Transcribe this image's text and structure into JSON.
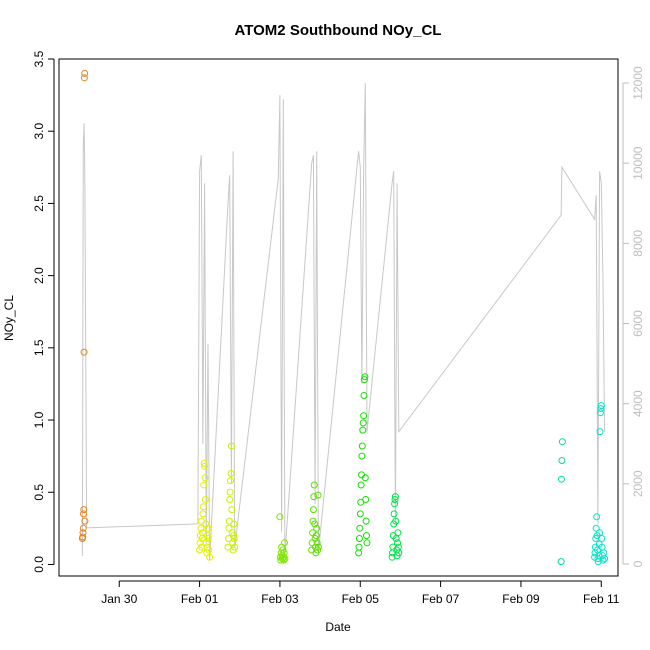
{
  "chart_data": {
    "type": "scatter",
    "title": "ATOM2 Southbound NOy_CL",
    "xlabel": "Date",
    "ylabel": "NOy_CL",
    "x_axis": {
      "type": "date",
      "range": [
        "2017-01-28T12:00",
        "2017-02-11T10:00"
      ],
      "ticks": [
        {
          "value": "2017-01-30",
          "label": "Jan 30"
        },
        {
          "value": "2017-02-01",
          "label": "Feb 01"
        },
        {
          "value": "2017-02-03",
          "label": "Feb 03"
        },
        {
          "value": "2017-02-05",
          "label": "Feb 05"
        },
        {
          "value": "2017-02-07",
          "label": "Feb 07"
        },
        {
          "value": "2017-02-09",
          "label": "Feb 09"
        },
        {
          "value": "2017-02-11",
          "label": "Feb 11"
        }
      ]
    },
    "y_axis": {
      "range": [
        -0.08,
        3.5
      ],
      "ticks": [
        0.0,
        0.5,
        1.0,
        1.5,
        2.0,
        2.5,
        3.0,
        3.5
      ],
      "tick_labels": [
        "0.0",
        "0.5",
        "1.0",
        "1.5",
        "2.0",
        "2.5",
        "3.0",
        "3.5"
      ]
    },
    "y2_axis": {
      "range": [
        -300,
        12600
      ],
      "ticks": [
        0,
        2000,
        4000,
        6000,
        8000,
        10000,
        12000
      ],
      "tick_labels": [
        "0",
        "2000",
        "4000",
        "6000",
        "8000",
        "10000",
        "12000"
      ],
      "color": "#bdbdbd"
    },
    "grid": false,
    "line_series": {
      "axis": "y2",
      "color": "#c8c8c8",
      "points": [
        [
          "2017-01-29T02:00",
          200
        ],
        [
          "2017-01-29T02:30",
          10500
        ],
        [
          "2017-01-29T03:00",
          11000
        ],
        [
          "2017-01-29T03:30",
          9500
        ],
        [
          "2017-01-29T04:00",
          5000
        ],
        [
          "2017-01-29T04:30",
          900
        ],
        [
          "2017-01-31T23:00",
          1000
        ],
        [
          "2017-02-01T00:00",
          9800
        ],
        [
          "2017-02-01T01:00",
          10200
        ],
        [
          "2017-02-01T02:00",
          3000
        ],
        [
          "2017-02-01T03:00",
          9500
        ],
        [
          "2017-02-01T04:00",
          500
        ],
        [
          "2017-02-01T05:00",
          5500
        ],
        [
          "2017-02-01T06:00",
          100
        ],
        [
          "2017-02-01T17:00",
          9000
        ],
        [
          "2017-02-01T18:00",
          9700
        ],
        [
          "2017-02-01T19:00",
          2000
        ],
        [
          "2017-02-01T20:00",
          10300
        ],
        [
          "2017-02-01T21:00",
          400
        ],
        [
          "2017-02-02T23:00",
          9600
        ],
        [
          "2017-02-03T00:00",
          11700
        ],
        [
          "2017-02-03T01:00",
          800
        ],
        [
          "2017-02-03T02:00",
          11600
        ],
        [
          "2017-02-03T03:00",
          200
        ],
        [
          "2017-02-03T19:00",
          10000
        ],
        [
          "2017-02-03T20:00",
          10200
        ],
        [
          "2017-02-03T21:00",
          1500
        ],
        [
          "2017-02-03T22:00",
          10300
        ],
        [
          "2017-02-03T23:00",
          300
        ],
        [
          "2017-02-04T23:00",
          10300
        ],
        [
          "2017-02-05T00:00",
          9900
        ],
        [
          "2017-02-05T01:00",
          4500
        ],
        [
          "2017-02-05T02:00",
          9800
        ],
        [
          "2017-02-05T03:00",
          12000
        ],
        [
          "2017-02-05T04:00",
          3300
        ],
        [
          "2017-02-05T19:00",
          9500
        ],
        [
          "2017-02-05T20:00",
          9800
        ],
        [
          "2017-02-05T21:00",
          1000
        ],
        [
          "2017-02-05T22:00",
          9500
        ],
        [
          "2017-02-05T23:00",
          3300
        ],
        [
          "2017-02-10T00:00",
          8700
        ],
        [
          "2017-02-10T00:30",
          9900
        ],
        [
          "2017-02-10T20:00",
          8600
        ],
        [
          "2017-02-10T21:00",
          9200
        ],
        [
          "2017-02-10T22:00",
          1000
        ],
        [
          "2017-02-10T23:00",
          9800
        ],
        [
          "2017-02-11T00:00",
          9500
        ],
        [
          "2017-02-11T01:00",
          7200
        ],
        [
          "2017-02-11T02:00",
          3300
        ]
      ]
    },
    "scatter_series": [
      {
        "color": "#e8831a",
        "x": [
          "2017-01-29T02:00",
          "2017-01-29T02:10",
          "2017-01-29T02:20",
          "2017-01-29T02:30",
          "2017-01-29T02:40",
          "2017-01-29T02:50",
          "2017-01-29T03:00",
          "2017-01-29T03:10",
          "2017-01-29T03:20",
          "2017-01-29T03:30"
        ],
        "y": [
          0.18,
          0.19,
          0.22,
          0.25,
          0.35,
          0.38,
          1.47,
          3.37,
          3.4,
          0.3
        ]
      },
      {
        "color": "#dff200",
        "x": [
          "2017-02-01T00:00",
          "2017-02-01T00:15",
          "2017-02-01T00:30",
          "2017-02-01T00:45",
          "2017-02-01T01:00",
          "2017-02-01T01:15",
          "2017-02-01T01:30",
          "2017-02-01T01:45",
          "2017-02-01T02:00",
          "2017-02-01T02:15",
          "2017-02-01T02:30",
          "2017-02-01T02:45",
          "2017-02-01T03:00",
          "2017-02-01T03:15",
          "2017-02-01T03:30",
          "2017-02-01T03:45",
          "2017-02-01T04:00",
          "2017-02-01T04:15",
          "2017-02-01T04:30",
          "2017-02-01T04:45",
          "2017-02-01T05:00",
          "2017-02-01T05:15",
          "2017-02-01T05:30",
          "2017-02-01T06:00"
        ],
        "y": [
          0.1,
          0.15,
          0.2,
          0.25,
          0.3,
          0.12,
          0.18,
          0.22,
          0.35,
          0.4,
          0.55,
          0.7,
          0.68,
          0.6,
          0.45,
          0.28,
          0.15,
          0.08,
          0.12,
          0.2,
          0.25,
          0.18,
          0.1,
          0.05
        ]
      },
      {
        "color": "#ccf000",
        "x": [
          "2017-02-01T17:00",
          "2017-02-01T17:15",
          "2017-02-01T17:30",
          "2017-02-01T17:45",
          "2017-02-01T18:00",
          "2017-02-01T18:15",
          "2017-02-01T18:30",
          "2017-02-01T18:45",
          "2017-02-01T19:00",
          "2017-02-01T19:15",
          "2017-02-01T19:30",
          "2017-02-01T19:45",
          "2017-02-01T20:00",
          "2017-02-01T20:15",
          "2017-02-01T20:30",
          "2017-02-01T20:45",
          "2017-02-01T21:00"
        ],
        "y": [
          0.12,
          0.18,
          0.25,
          0.3,
          0.45,
          0.5,
          0.58,
          0.63,
          0.82,
          0.38,
          0.22,
          0.15,
          0.1,
          0.2,
          0.28,
          0.18,
          0.12
        ]
      },
      {
        "color": "#7de600",
        "x": [
          "2017-02-03T00:00",
          "2017-02-03T00:15",
          "2017-02-03T00:30",
          "2017-02-03T00:45",
          "2017-02-03T01:00",
          "2017-02-03T01:15",
          "2017-02-03T01:30",
          "2017-02-03T01:45",
          "2017-02-03T02:00",
          "2017-02-03T02:15",
          "2017-02-03T02:30",
          "2017-02-03T02:45",
          "2017-02-03T03:00"
        ],
        "y": [
          0.33,
          0.05,
          0.03,
          0.08,
          0.12,
          0.06,
          0.04,
          0.1,
          0.05,
          0.03,
          0.08,
          0.15,
          0.04
        ]
      },
      {
        "color": "#5ee000",
        "x": [
          "2017-02-03T19:00",
          "2017-02-03T19:15",
          "2017-02-03T19:30",
          "2017-02-03T19:45",
          "2017-02-03T20:00",
          "2017-02-03T20:15",
          "2017-02-03T20:30",
          "2017-02-03T20:45",
          "2017-02-03T21:00",
          "2017-02-03T21:15",
          "2017-02-03T21:30",
          "2017-02-03T21:45",
          "2017-02-03T22:00",
          "2017-02-03T22:15",
          "2017-02-03T22:30",
          "2017-02-03T22:45",
          "2017-02-03T23:00"
        ],
        "y": [
          0.1,
          0.15,
          0.22,
          0.3,
          0.38,
          0.47,
          0.55,
          0.28,
          0.18,
          0.12,
          0.08,
          0.2,
          0.25,
          0.15,
          0.1,
          0.48,
          0.12
        ]
      },
      {
        "color": "#12e000",
        "x": [
          "2017-02-04T23:00",
          "2017-02-04T23:15",
          "2017-02-04T23:30",
          "2017-02-04T23:45",
          "2017-02-05T00:00",
          "2017-02-05T00:15",
          "2017-02-05T00:30",
          "2017-02-05T00:45",
          "2017-02-05T01:00",
          "2017-02-05T01:15",
          "2017-02-05T01:30",
          "2017-02-05T01:45",
          "2017-02-05T02:00",
          "2017-02-05T02:15",
          "2017-02-05T02:30",
          "2017-02-05T02:45",
          "2017-02-05T03:00",
          "2017-02-05T03:15",
          "2017-02-05T03:30",
          "2017-02-05T03:45",
          "2017-02-05T04:00"
        ],
        "y": [
          0.08,
          0.12,
          0.18,
          0.25,
          0.35,
          0.43,
          0.55,
          0.62,
          0.75,
          0.82,
          0.93,
          0.98,
          1.03,
          1.17,
          1.28,
          1.3,
          0.6,
          0.45,
          0.3,
          0.2,
          0.15
        ]
      },
      {
        "color": "#00e24a",
        "x": [
          "2017-02-05T19:00",
          "2017-02-05T19:15",
          "2017-02-05T19:30",
          "2017-02-05T19:45",
          "2017-02-05T20:00",
          "2017-02-05T20:15",
          "2017-02-05T20:30",
          "2017-02-05T20:45",
          "2017-02-05T21:00",
          "2017-02-05T21:15",
          "2017-02-05T21:30",
          "2017-02-05T21:45",
          "2017-02-05T22:00",
          "2017-02-05T22:15",
          "2017-02-05T22:30",
          "2017-02-05T22:45",
          "2017-02-05T23:00"
        ],
        "y": [
          0.05,
          0.08,
          0.12,
          0.2,
          0.28,
          0.35,
          0.42,
          0.45,
          0.47,
          0.3,
          0.18,
          0.1,
          0.06,
          0.15,
          0.22,
          0.12,
          0.08
        ]
      },
      {
        "color": "#00e08a",
        "x": [
          "2017-02-10T00:00",
          "2017-02-10T00:15",
          "2017-02-10T00:30",
          "2017-02-10T00:45"
        ],
        "y": [
          0.02,
          0.59,
          0.72,
          0.85
        ]
      },
      {
        "color": "#00e6c8",
        "x": [
          "2017-02-10T20:00",
          "2017-02-10T20:15",
          "2017-02-10T20:30",
          "2017-02-10T20:45",
          "2017-02-10T21:00",
          "2017-02-10T21:15",
          "2017-02-10T21:30",
          "2017-02-10T21:45",
          "2017-02-10T22:00",
          "2017-02-10T22:15",
          "2017-02-10T22:30",
          "2017-02-10T22:45",
          "2017-02-10T23:00",
          "2017-02-10T23:15",
          "2017-02-10T23:30",
          "2017-02-10T23:45",
          "2017-02-11T00:00",
          "2017-02-11T00:15",
          "2017-02-11T00:30",
          "2017-02-11T00:45",
          "2017-02-11T01:00",
          "2017-02-11T01:30",
          "2017-02-11T02:00"
        ],
        "y": [
          0.05,
          0.08,
          0.12,
          0.18,
          0.25,
          0.33,
          0.2,
          0.1,
          0.04,
          0.02,
          0.06,
          0.14,
          0.22,
          0.92,
          1.05,
          1.08,
          1.1,
          0.18,
          0.12,
          0.06,
          0.03,
          0.08,
          0.04
        ]
      }
    ]
  }
}
